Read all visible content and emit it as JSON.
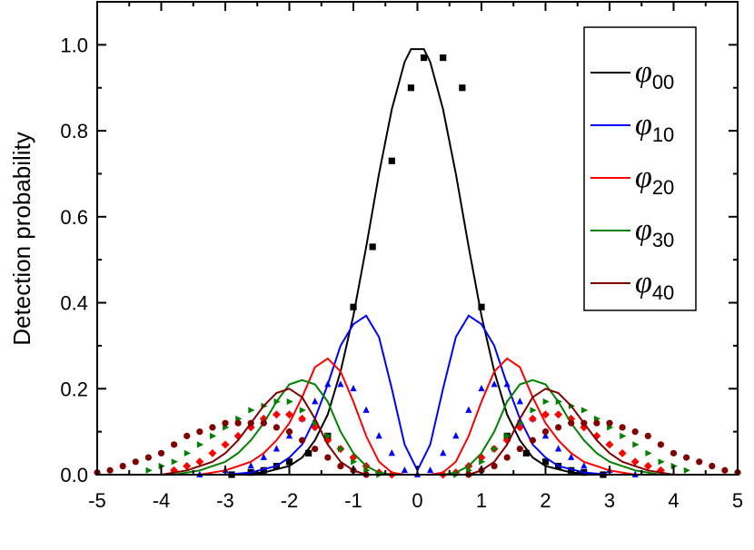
{
  "chart_data": {
    "type": "line",
    "title": "",
    "xlabel": "",
    "ylabel": "Detection probability",
    "xlim": [
      -5,
      5
    ],
    "ylim": [
      0,
      1.1
    ],
    "xticks": [
      -5,
      -4,
      -3,
      -2,
      -1,
      0,
      1,
      2,
      3,
      4,
      5
    ],
    "xtick_labels": [
      "-5",
      "-4",
      "-3",
      "-2",
      "-1",
      "0",
      "1",
      "2",
      "3",
      "4",
      "5"
    ],
    "yticks": [
      0.0,
      0.2,
      0.4,
      0.6,
      0.8,
      1.0
    ],
    "ytick_labels": [
      "0.0",
      "0.2",
      "0.4",
      "0.6",
      "0.8",
      "1.0"
    ],
    "grid": false,
    "legend_position": "top-right",
    "series": [
      {
        "name": "φ00",
        "label_main": "φ",
        "label_sub": "00",
        "color": "#000000",
        "marker": "square",
        "line": {
          "x": [
            -2.8,
            -2.4,
            -2.0,
            -1.8,
            -1.6,
            -1.4,
            -1.2,
            -1.0,
            -0.8,
            -0.6,
            -0.4,
            -0.2,
            -0.1,
            0.1,
            0.2,
            0.4,
            0.6,
            0.8,
            1.0,
            1.2,
            1.4,
            1.6,
            1.8,
            2.0,
            2.4,
            2.8
          ],
          "y": [
            0.0,
            0.005,
            0.02,
            0.04,
            0.08,
            0.14,
            0.24,
            0.37,
            0.53,
            0.7,
            0.85,
            0.96,
            0.99,
            0.99,
            0.96,
            0.85,
            0.7,
            0.53,
            0.37,
            0.24,
            0.14,
            0.08,
            0.04,
            0.02,
            0.005,
            0.0
          ]
        },
        "points": {
          "x": [
            -2.9,
            -2.6,
            -2.4,
            -2.2,
            -2.0,
            -1.7,
            -1.4,
            -1.0,
            -0.7,
            -0.4,
            -0.1,
            0.1,
            0.4,
            0.7,
            1.0,
            1.4,
            1.7,
            2.0,
            2.2,
            2.4,
            2.6,
            2.9
          ],
          "y": [
            0.0,
            0.005,
            0.01,
            0.02,
            0.03,
            0.05,
            0.09,
            0.39,
            0.53,
            0.73,
            0.9,
            0.97,
            0.97,
            0.9,
            0.39,
            0.09,
            0.05,
            0.03,
            0.02,
            0.01,
            0.005,
            0.0
          ]
        }
      },
      {
        "name": "φ10",
        "label_main": "φ",
        "label_sub": "10",
        "color": "#0000ff",
        "marker": "triangle-up",
        "line": {
          "x": [
            -3.0,
            -2.6,
            -2.2,
            -2.0,
            -1.8,
            -1.6,
            -1.4,
            -1.2,
            -1.0,
            -0.8,
            -0.6,
            -0.4,
            -0.2,
            0.0,
            0.2,
            0.4,
            0.6,
            0.8,
            1.0,
            1.2,
            1.4,
            1.6,
            1.8,
            2.0,
            2.2,
            2.6,
            3.0
          ],
          "y": [
            0.0,
            0.005,
            0.02,
            0.04,
            0.07,
            0.13,
            0.21,
            0.3,
            0.35,
            0.37,
            0.32,
            0.2,
            0.07,
            0.01,
            0.07,
            0.2,
            0.32,
            0.37,
            0.35,
            0.3,
            0.21,
            0.13,
            0.07,
            0.04,
            0.02,
            0.005,
            0.0
          ]
        },
        "points": {
          "x": [
            -3.4,
            -3.0,
            -2.6,
            -2.4,
            -2.2,
            -2.0,
            -1.8,
            -1.6,
            -1.4,
            -1.2,
            -1.0,
            -0.8,
            -0.6,
            -0.4,
            -0.2,
            0.0,
            0.2,
            0.4,
            0.6,
            0.8,
            1.0,
            1.2,
            1.4,
            1.6,
            1.8,
            2.0,
            2.2,
            2.4,
            2.6,
            3.0,
            3.4
          ],
          "y": [
            0.0,
            0.01,
            0.02,
            0.04,
            0.06,
            0.09,
            0.13,
            0.17,
            0.21,
            0.21,
            0.2,
            0.15,
            0.09,
            0.05,
            0.01,
            0.0,
            0.01,
            0.05,
            0.09,
            0.15,
            0.2,
            0.21,
            0.21,
            0.17,
            0.13,
            0.09,
            0.06,
            0.04,
            0.02,
            0.01,
            0.0
          ]
        }
      },
      {
        "name": "φ20",
        "label_main": "φ",
        "label_sub": "20",
        "color": "#ff0000",
        "marker": "diamond",
        "line": {
          "x": [
            -3.4,
            -3.0,
            -2.6,
            -2.4,
            -2.2,
            -2.0,
            -1.8,
            -1.6,
            -1.4,
            -1.2,
            -1.0,
            -0.8,
            -0.6,
            -0.4,
            -0.2,
            0.0,
            0.2,
            0.4,
            0.6,
            0.8,
            1.0,
            1.2,
            1.4,
            1.6,
            1.8,
            2.0,
            2.2,
            2.4,
            2.6,
            3.0,
            3.4
          ],
          "y": [
            0.0,
            0.01,
            0.03,
            0.05,
            0.08,
            0.12,
            0.18,
            0.25,
            0.27,
            0.24,
            0.17,
            0.09,
            0.03,
            0.005,
            0.0,
            0.0,
            0.0,
            0.005,
            0.03,
            0.09,
            0.17,
            0.24,
            0.27,
            0.25,
            0.18,
            0.12,
            0.08,
            0.05,
            0.03,
            0.01,
            0.0
          ]
        },
        "points": {
          "x": [
            -3.8,
            -3.6,
            -3.4,
            -3.2,
            -3.0,
            -2.8,
            -2.6,
            -2.4,
            -2.2,
            -2.0,
            -1.8,
            -1.6,
            -1.4,
            -1.2,
            -1.0,
            -0.8,
            -0.6,
            -0.4,
            0.4,
            0.6,
            0.8,
            1.0,
            1.2,
            1.4,
            1.6,
            1.8,
            2.0,
            2.2,
            2.4,
            2.6,
            2.8,
            3.0,
            3.2,
            3.4,
            3.6,
            3.8
          ],
          "y": [
            0.01,
            0.02,
            0.03,
            0.05,
            0.07,
            0.09,
            0.11,
            0.13,
            0.14,
            0.14,
            0.13,
            0.11,
            0.08,
            0.06,
            0.04,
            0.02,
            0.005,
            0.0,
            0.0,
            0.005,
            0.02,
            0.04,
            0.06,
            0.08,
            0.11,
            0.13,
            0.14,
            0.14,
            0.13,
            0.11,
            0.09,
            0.07,
            0.05,
            0.03,
            0.02,
            0.01
          ]
        }
      },
      {
        "name": "φ30",
        "label_main": "φ",
        "label_sub": "30",
        "color": "#008000",
        "marker": "triangle-right",
        "line": {
          "x": [
            -3.8,
            -3.4,
            -3.0,
            -2.8,
            -2.6,
            -2.4,
            -2.2,
            -2.0,
            -1.8,
            -1.6,
            -1.4,
            -1.2,
            -1.0,
            -0.8,
            -0.6,
            -0.4,
            0.4,
            0.6,
            0.8,
            1.0,
            1.2,
            1.4,
            1.6,
            1.8,
            2.0,
            2.2,
            2.4,
            2.6,
            2.8,
            3.0,
            3.4,
            3.8
          ],
          "y": [
            0.0,
            0.01,
            0.03,
            0.05,
            0.08,
            0.12,
            0.17,
            0.21,
            0.22,
            0.21,
            0.17,
            0.1,
            0.05,
            0.02,
            0.005,
            0.0,
            0.0,
            0.005,
            0.02,
            0.05,
            0.1,
            0.17,
            0.21,
            0.22,
            0.21,
            0.17,
            0.12,
            0.08,
            0.05,
            0.03,
            0.01,
            0.0
          ]
        },
        "points": {
          "x": [
            -4.2,
            -4.0,
            -3.8,
            -3.6,
            -3.4,
            -3.2,
            -3.0,
            -2.8,
            -2.6,
            -2.4,
            -2.2,
            -2.0,
            -1.8,
            -1.6,
            -1.4,
            -1.2,
            -1.0,
            -0.8,
            -0.6,
            0.6,
            0.8,
            1.0,
            1.2,
            1.4,
            1.6,
            1.8,
            2.0,
            2.2,
            2.4,
            2.6,
            2.8,
            3.0,
            3.2,
            3.4,
            3.6,
            3.8,
            4.0,
            4.2
          ],
          "y": [
            0.01,
            0.02,
            0.03,
            0.05,
            0.07,
            0.09,
            0.11,
            0.13,
            0.15,
            0.16,
            0.17,
            0.17,
            0.15,
            0.12,
            0.09,
            0.06,
            0.03,
            0.01,
            0.0,
            0.0,
            0.01,
            0.03,
            0.06,
            0.09,
            0.12,
            0.15,
            0.17,
            0.17,
            0.16,
            0.15,
            0.13,
            0.11,
            0.09,
            0.07,
            0.05,
            0.03,
            0.02,
            0.01
          ]
        }
      },
      {
        "name": "φ40",
        "label_main": "φ",
        "label_sub": "40",
        "color": "#800000",
        "marker": "circle",
        "line": {
          "x": [
            -4.0,
            -3.6,
            -3.2,
            -3.0,
            -2.8,
            -2.6,
            -2.4,
            -2.2,
            -2.0,
            -1.8,
            -1.6,
            -1.4,
            -1.2,
            -1.0,
            -0.8,
            -0.6,
            0.6,
            0.8,
            1.0,
            1.2,
            1.4,
            1.6,
            1.8,
            2.0,
            2.2,
            2.4,
            2.6,
            2.8,
            3.0,
            3.2,
            3.6,
            4.0
          ],
          "y": [
            0.0,
            0.01,
            0.03,
            0.05,
            0.08,
            0.12,
            0.16,
            0.19,
            0.2,
            0.18,
            0.13,
            0.07,
            0.03,
            0.01,
            0.0,
            0.0,
            0.0,
            0.0,
            0.01,
            0.03,
            0.07,
            0.13,
            0.18,
            0.2,
            0.19,
            0.16,
            0.12,
            0.08,
            0.05,
            0.03,
            0.01,
            0.0
          ]
        },
        "points": {
          "x": [
            -5.0,
            -4.8,
            -4.6,
            -4.4,
            -4.2,
            -4.0,
            -3.8,
            -3.6,
            -3.4,
            -3.2,
            -3.0,
            -2.8,
            -2.6,
            -2.4,
            -2.2,
            -2.0,
            -1.8,
            -1.6,
            -1.4,
            -1.2,
            -1.0,
            -0.8,
            0.8,
            1.0,
            1.2,
            1.4,
            1.6,
            1.8,
            2.0,
            2.2,
            2.4,
            2.6,
            2.8,
            3.0,
            3.2,
            3.4,
            3.6,
            3.8,
            4.0,
            4.2,
            4.4,
            4.6,
            4.8,
            5.0
          ],
          "y": [
            0.005,
            0.01,
            0.02,
            0.03,
            0.04,
            0.05,
            0.07,
            0.09,
            0.1,
            0.11,
            0.12,
            0.12,
            0.12,
            0.12,
            0.11,
            0.1,
            0.08,
            0.06,
            0.04,
            0.02,
            0.01,
            0.0,
            0.0,
            0.01,
            0.02,
            0.04,
            0.06,
            0.08,
            0.1,
            0.11,
            0.12,
            0.12,
            0.12,
            0.12,
            0.11,
            0.1,
            0.09,
            0.07,
            0.05,
            0.04,
            0.03,
            0.02,
            0.01,
            0.005
          ]
        }
      }
    ]
  }
}
